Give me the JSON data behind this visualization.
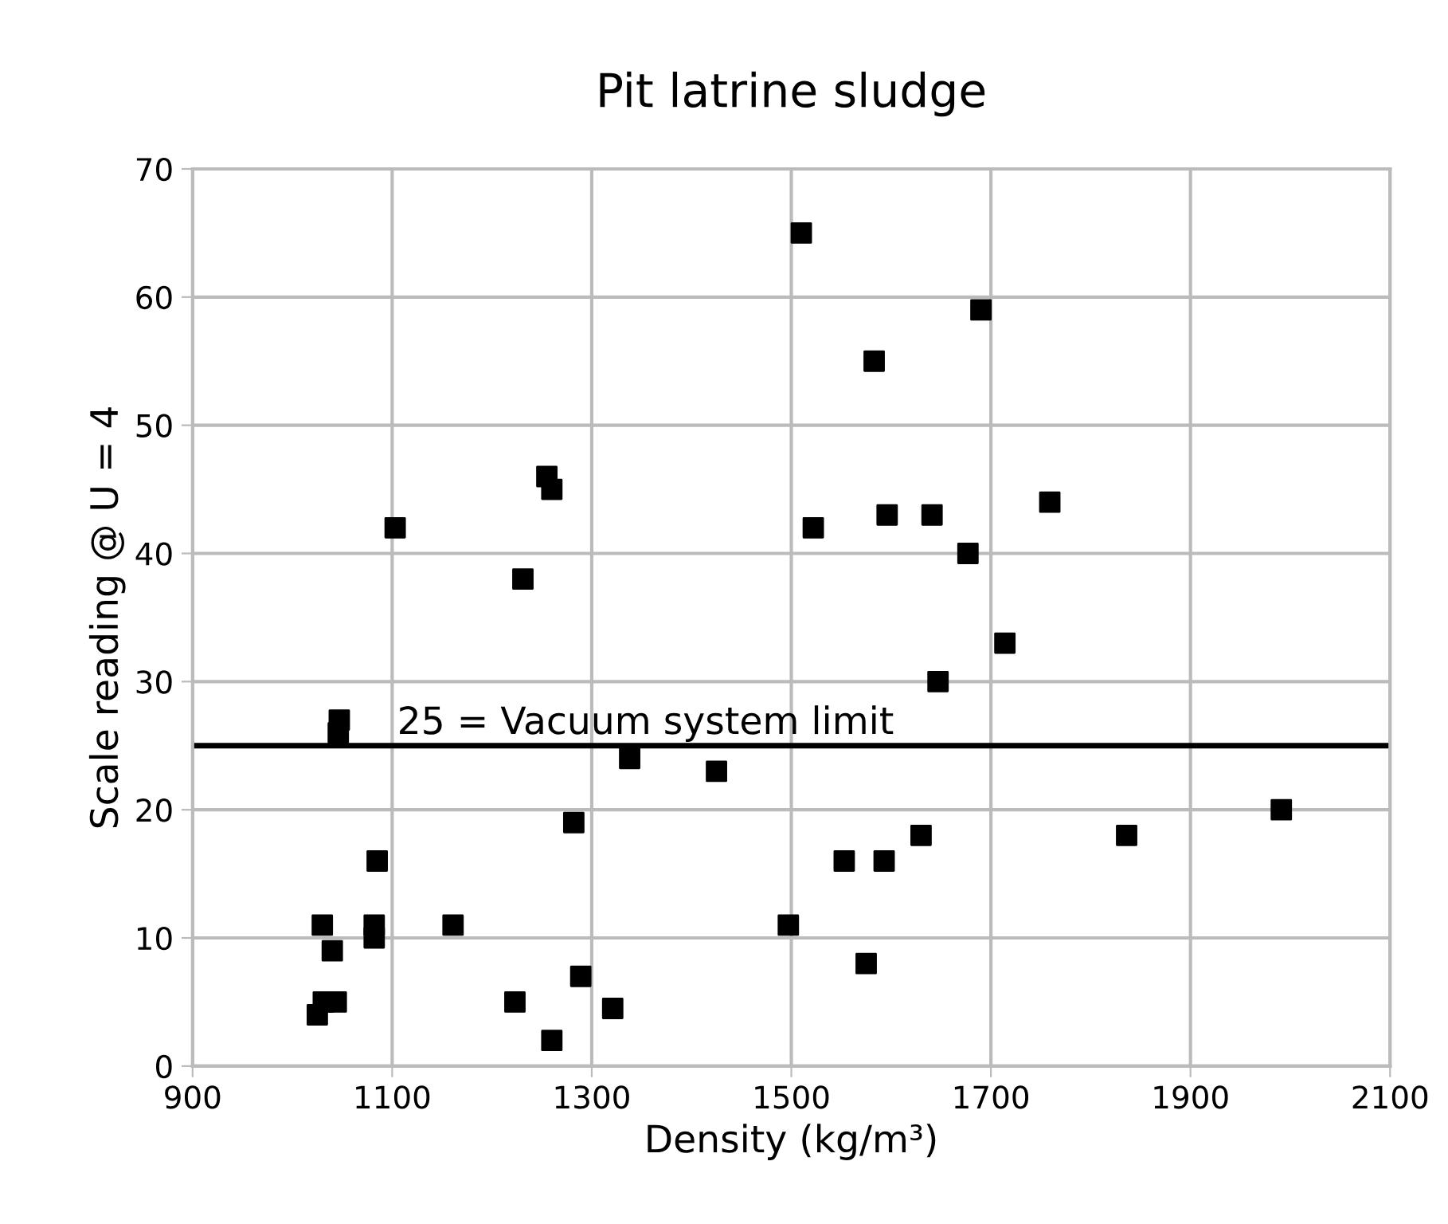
{
  "chart_data": {
    "type": "scatter",
    "title": "Pit latrine sludge",
    "xlabel": "Density (kg/m³)",
    "ylabel": "Scale reading @ U = 4",
    "x": [
      1510,
      1690,
      1583,
      1522,
      1596,
      1641,
      1759,
      1677,
      1714,
      1647,
      1630,
      1553,
      1593,
      1497,
      1575,
      1836,
      1991,
      1255,
      1260,
      1103,
      1231,
      1047,
      1046,
      1338,
      1425,
      1282,
      1085,
      1030,
      1082,
      1082,
      1040,
      1161,
      1031,
      1044,
      1025,
      1223,
      1289,
      1321,
      1260
    ],
    "series": [
      {
        "color": "#000000",
        "values": [
          65,
          59,
          55,
          42,
          43,
          43,
          44,
          40,
          33,
          30,
          18,
          16,
          16,
          11,
          8,
          18,
          20,
          46,
          45,
          42,
          38,
          27,
          26,
          24,
          23,
          19,
          16,
          11,
          11,
          10,
          9,
          11,
          5,
          5,
          4,
          5,
          7,
          4.5,
          2
        ]
      }
    ],
    "xlim": [
      900,
      2100
    ],
    "xticks": [
      900,
      1100,
      1300,
      1500,
      1700,
      1900,
      2100
    ],
    "ylim": [
      0,
      70
    ],
    "yticks": [
      0,
      10,
      20,
      30,
      40,
      50,
      60,
      70
    ],
    "grid": true,
    "marker": "square",
    "ref_lines": [
      {
        "axis": "y",
        "value": 25,
        "label": "25 = Vacuum system limit",
        "color": "#000000"
      }
    ]
  }
}
